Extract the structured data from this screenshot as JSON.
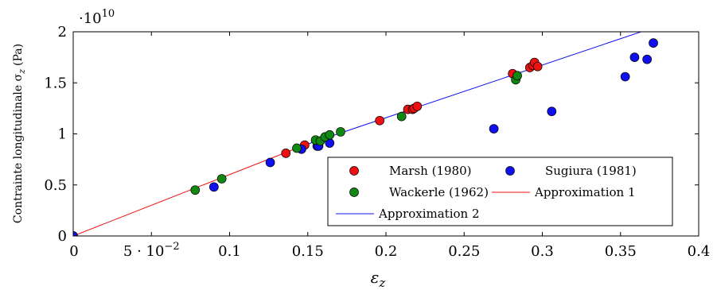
{
  "chart_data": {
    "type": "scatter",
    "xlabel": "ε",
    "xlabel_sub": "z",
    "ylabel": "Contrainte longitudinale σ",
    "ylabel_sub": "z",
    "ylabel_unit": "(Pa)",
    "y_multiplier": "·10",
    "y_multiplier_exp": "10",
    "xlim": [
      0,
      0.4
    ],
    "ylim": [
      0,
      20000000000
    ],
    "x_ticks": [
      {
        "value": 0,
        "label": "0"
      },
      {
        "value": 0.05,
        "label": "5 · 10",
        "exp": "−2"
      },
      {
        "value": 0.1,
        "label": "0.1"
      },
      {
        "value": 0.15,
        "label": "0.15"
      },
      {
        "value": 0.2,
        "label": "0.2"
      },
      {
        "value": 0.25,
        "label": "0.25"
      },
      {
        "value": 0.3,
        "label": "0.3"
      },
      {
        "value": 0.35,
        "label": "0.35"
      },
      {
        "value": 0.4,
        "label": "0.4"
      }
    ],
    "y_ticks": [
      {
        "value": 0,
        "label": "0"
      },
      {
        "value": 5000000000,
        "label": "0.5"
      },
      {
        "value": 10000000000,
        "label": "1"
      },
      {
        "value": 15000000000,
        "label": "1.5"
      },
      {
        "value": 20000000000,
        "label": "2"
      }
    ],
    "grid": false,
    "legend_position": "bottom-right",
    "legend_columns": 2,
    "series": [
      {
        "name": "Marsh (1980)",
        "kind": "scatter",
        "color": "#ee1111",
        "points": [
          [
            0,
            0
          ],
          [
            0.136,
            8100000000
          ],
          [
            0.148,
            8900000000
          ],
          [
            0.196,
            11300000000
          ],
          [
            0.214,
            12400000000
          ],
          [
            0.217,
            12400000000
          ],
          [
            0.218,
            12500000000
          ],
          [
            0.22,
            12700000000
          ],
          [
            0.281,
            15900000000
          ],
          [
            0.292,
            16500000000
          ],
          [
            0.294,
            16700000000
          ],
          [
            0.295,
            17000000000
          ],
          [
            0.297,
            16600000000
          ]
        ]
      },
      {
        "name": "Sugiura (1981)",
        "kind": "scatter",
        "color": "#1010ee",
        "points": [
          [
            0,
            0
          ],
          [
            0.09,
            4800000000
          ],
          [
            0.126,
            7200000000
          ],
          [
            0.146,
            8500000000
          ],
          [
            0.156,
            8800000000
          ],
          [
            0.157,
            8800000000
          ],
          [
            0.164,
            9100000000
          ],
          [
            0.269,
            10500000000
          ],
          [
            0.306,
            12200000000
          ],
          [
            0.353,
            15600000000
          ],
          [
            0.359,
            17500000000
          ],
          [
            0.367,
            17300000000
          ],
          [
            0.371,
            18900000000
          ]
        ]
      },
      {
        "name": "Wackerle (1962)",
        "kind": "scatter",
        "color": "#118811",
        "points": [
          [
            0.078,
            4500000000
          ],
          [
            0.095,
            5600000000
          ],
          [
            0.143,
            8600000000
          ],
          [
            0.155,
            9400000000
          ],
          [
            0.158,
            9300000000
          ],
          [
            0.161,
            9700000000
          ],
          [
            0.164,
            9900000000
          ],
          [
            0.171,
            10200000000
          ],
          [
            0.21,
            11700000000
          ],
          [
            0.283,
            15300000000
          ],
          [
            0.284,
            15700000000
          ]
        ]
      },
      {
        "name": "Approximation 1",
        "kind": "line",
        "color": "#ee1111",
        "points": [
          [
            0,
            0
          ],
          [
            0.148,
            8900000000
          ]
        ]
      },
      {
        "name": "Approximation 2",
        "kind": "line",
        "color": "#1010ee",
        "points": [
          [
            0.148,
            8900000000
          ],
          [
            0.4,
            21900000000
          ]
        ]
      }
    ]
  }
}
